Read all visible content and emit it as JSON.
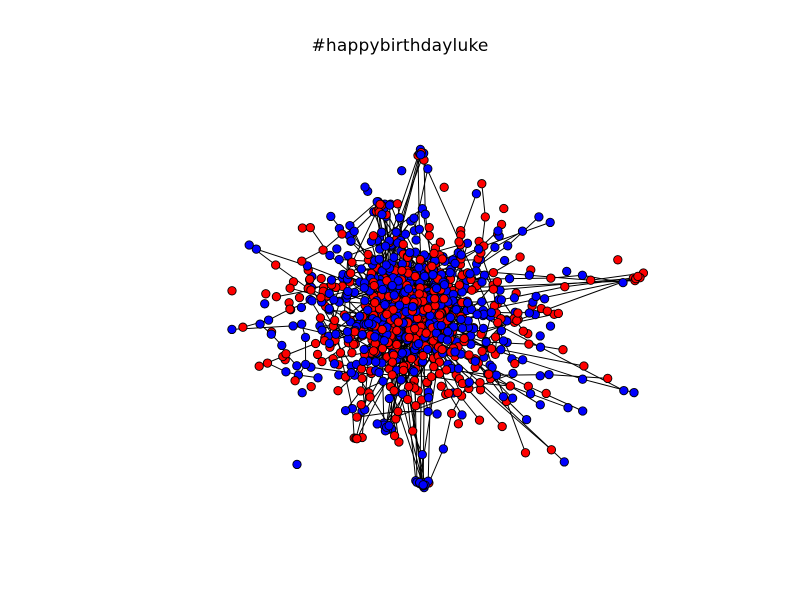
{
  "figure": {
    "title": "#happybirthdayluke"
  },
  "graph": {
    "node_colors": [
      "#ff0000",
      "#0000ff"
    ],
    "edge_color": "#000000",
    "node_outline": "#000000"
  }
}
